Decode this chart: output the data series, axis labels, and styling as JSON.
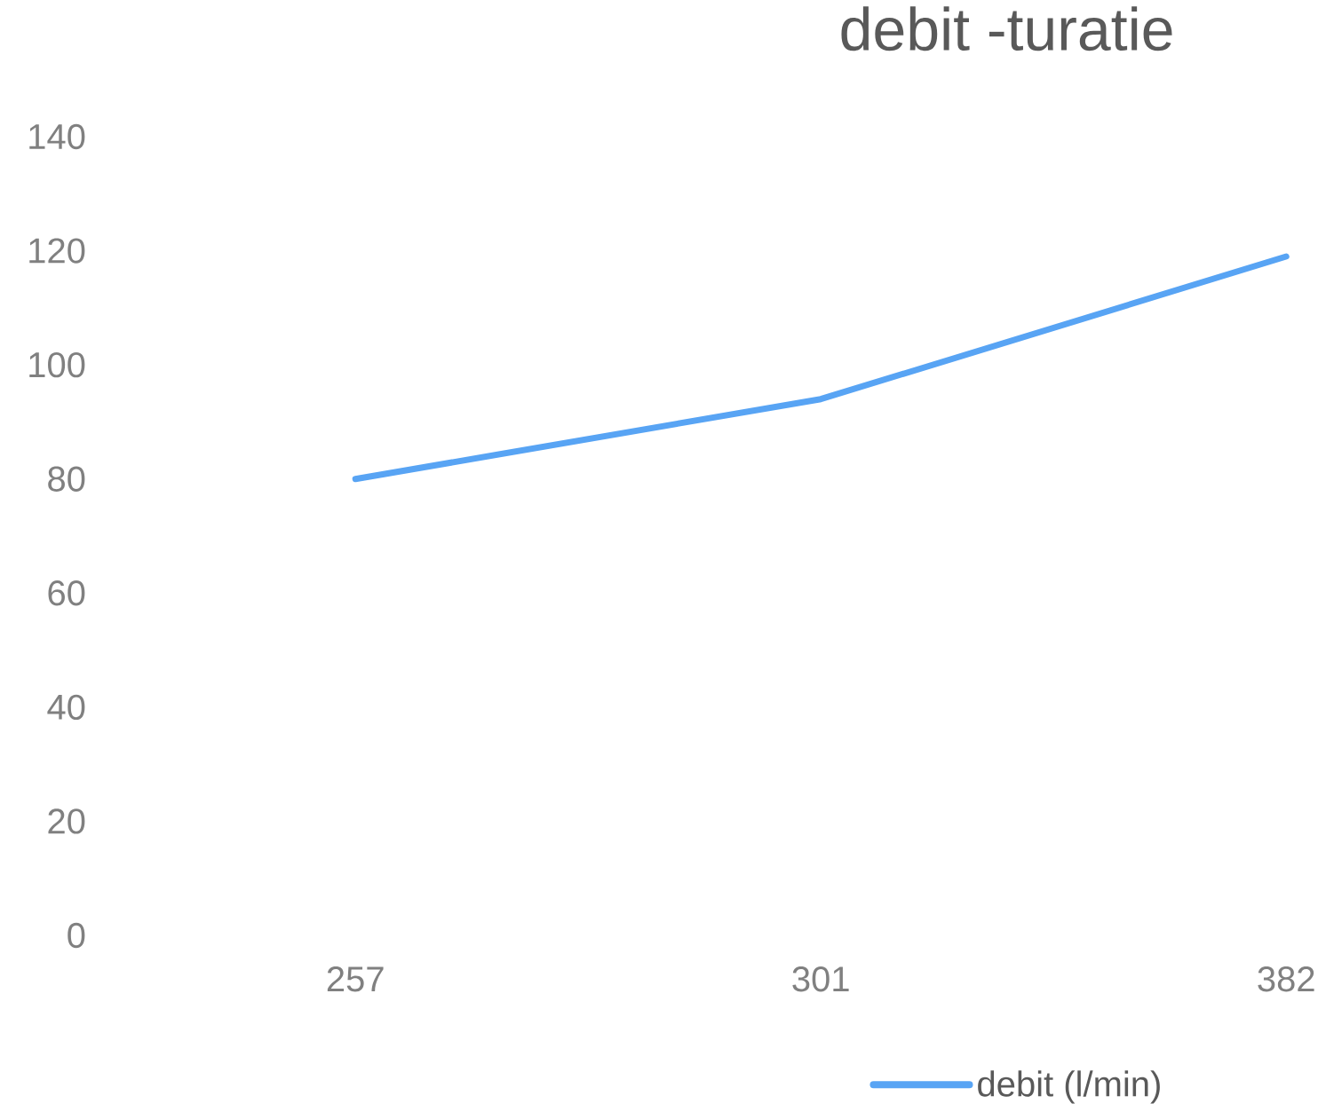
{
  "chart_data": {
    "type": "line",
    "title": "debit -turatie",
    "categories": [
      "257",
      "301",
      "382"
    ],
    "series": [
      {
        "name": "debit (l/min)",
        "color": "#58a4f4",
        "values": [
          80,
          94,
          119
        ]
      }
    ],
    "ylim": [
      0,
      140
    ],
    "yticks": [
      0,
      20,
      40,
      60,
      80,
      100,
      120,
      140
    ],
    "legend": "bottom"
  }
}
